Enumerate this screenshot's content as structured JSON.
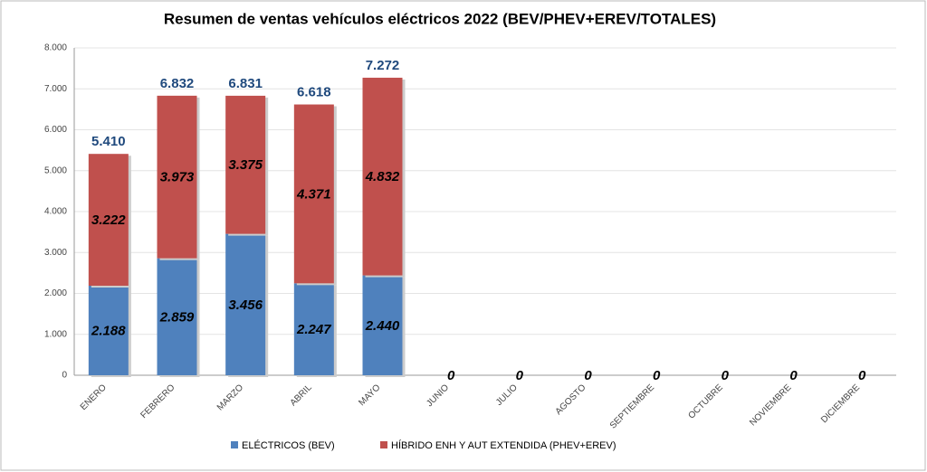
{
  "chart_data": {
    "type": "stacked_bar",
    "title": "Resumen de ventas vehículos eléctricos 2022 (BEV/PHEV+EREV/TOTALES)",
    "categories": [
      "ENERO",
      "FEBRERO",
      "MARZO",
      "ABRIL",
      "MAYO",
      "JUNIO",
      "JULIO",
      "AGOSTO",
      "SEPTIEMBRE",
      "OCTUBRE",
      "NOVIEMBRE",
      "DICIEMBRE"
    ],
    "series": [
      {
        "name": "ELÉCTRICOS (BEV)",
        "color": "#4f81bd",
        "values": [
          2188,
          2859,
          3456,
          2247,
          2440,
          0,
          0,
          0,
          0,
          0,
          0,
          0
        ],
        "value_labels": [
          "2.188",
          "2.859",
          "3.456",
          "2.247",
          "2.440",
          "0",
          "0",
          "0",
          "0",
          "0",
          "0",
          "0"
        ]
      },
      {
        "name": "HÍBRIDO ENH Y AUT EXTENDIDA (PHEV+EREV)",
        "color": "#c0504d",
        "values": [
          3222,
          3973,
          3375,
          4371,
          4832,
          null,
          null,
          null,
          null,
          null,
          null,
          null
        ],
        "value_labels": [
          "3.222",
          "3.973",
          "3.375",
          "4.371",
          "4.832",
          null,
          null,
          null,
          null,
          null,
          null,
          null
        ]
      }
    ],
    "totals": {
      "values": [
        5410,
        6832,
        6831,
        6618,
        7272,
        null,
        null,
        null,
        null,
        null,
        null,
        null
      ],
      "value_labels": [
        "5.410",
        "6.832",
        "6.831",
        "6.618",
        "7.272",
        null,
        null,
        null,
        null,
        null,
        null,
        null
      ],
      "color": "#1f497d"
    },
    "ylim": [
      0,
      8000
    ],
    "yticks": [
      0,
      {
        "value": 1000,
        "label": "1.000"
      },
      {
        "value": 2000,
        "label": "2.000"
      },
      {
        "value": 3000,
        "label": "3.000"
      },
      {
        "value": 4000,
        "label": "4.000"
      },
      {
        "value": 5000,
        "label": "5.000"
      },
      {
        "value": 6000,
        "label": "6.000"
      },
      {
        "value": 7000,
        "label": "7.000"
      },
      {
        "value": 8000,
        "label": "8.000"
      }
    ],
    "grid": true,
    "legend": "bottom"
  }
}
